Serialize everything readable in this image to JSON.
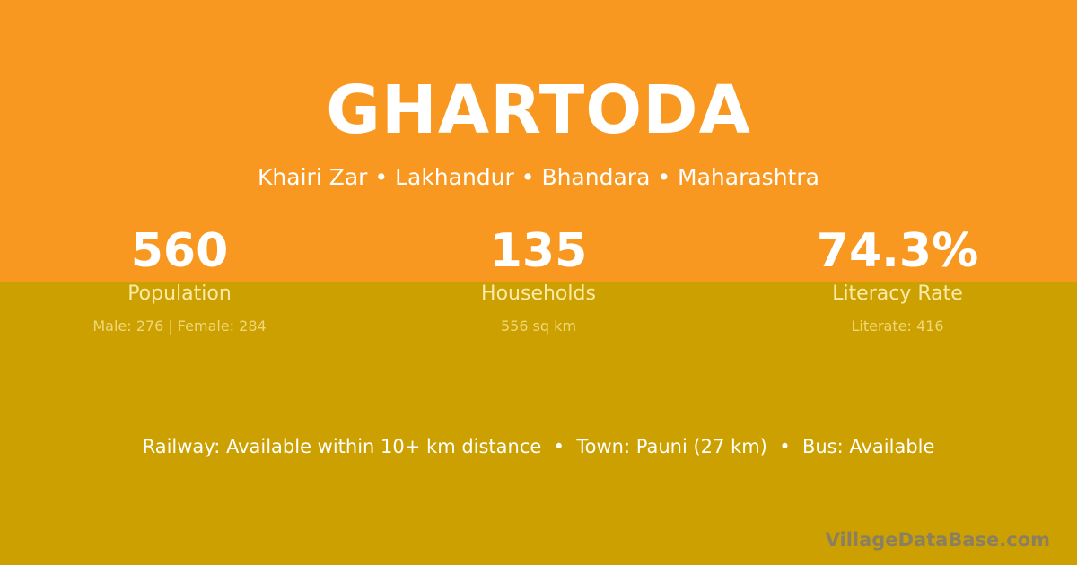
{
  "village": {
    "name": "GHARTODA",
    "location": "Khairi Zar • Lakhandur • Bhandara • Maharashtra"
  },
  "stats": [
    {
      "value": "560",
      "label": "Population",
      "detail": "Male: 276 | Female: 284"
    },
    {
      "value": "135",
      "label": "Households",
      "detail": "556 sq km"
    },
    {
      "value": "74.3%",
      "label": "Literacy Rate",
      "detail": "Literate: 416"
    }
  ],
  "connectivity": "Railway: Available within 10+ km distance  •  Town: Pauni (27 km)  •  Bus: Available",
  "watermark": "VillageDataBase.com",
  "colors": {
    "top": "#f99820",
    "bottom": "#cca000"
  }
}
